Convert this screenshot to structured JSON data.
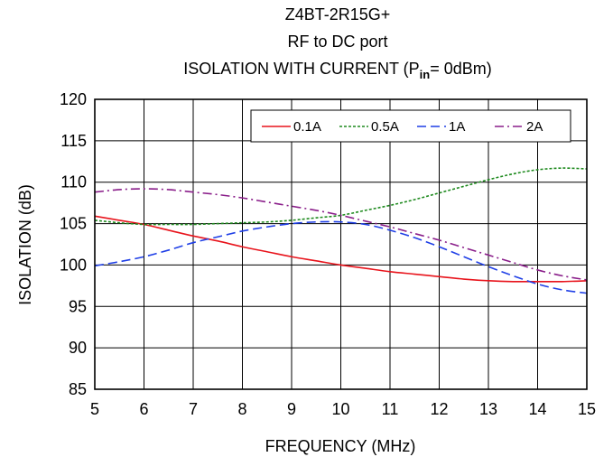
{
  "chart_data": {
    "type": "line",
    "title_lines": [
      "Z4BT-2R15G+",
      "RF to DC port"
    ],
    "title_line3": {
      "prefix": "ISOLATION WITH CURRENT (P",
      "subscript": "in",
      "suffix": "= 0dBm)"
    },
    "xlabel": "FREQUENCY (MHz)",
    "ylabel": "ISOLATION (dB)",
    "xlim": [
      5,
      15
    ],
    "ylim": [
      85,
      120
    ],
    "x_ticks": [
      5,
      6,
      7,
      8,
      9,
      10,
      11,
      12,
      13,
      14,
      15
    ],
    "y_ticks": [
      85,
      90,
      95,
      100,
      105,
      110,
      115,
      120
    ],
    "grid": true,
    "legend_position": "top-right",
    "series": [
      {
        "name": "0.1A",
        "color": "#e8141c",
        "dash": "solid",
        "x": [
          5,
          5.5,
          6,
          6.5,
          7,
          7.5,
          8,
          8.5,
          9,
          9.5,
          10,
          10.5,
          11,
          11.5,
          12,
          12.5,
          13,
          13.5,
          14,
          14.5,
          15
        ],
        "y": [
          105.9,
          105.4,
          104.9,
          104.2,
          103.5,
          102.9,
          102.2,
          101.6,
          101.0,
          100.5,
          100.0,
          99.6,
          99.2,
          98.9,
          98.6,
          98.3,
          98.1,
          98.0,
          98.0,
          98.0,
          98.1
        ]
      },
      {
        "name": "0.5A",
        "color": "#1e8a1e",
        "dash": "short",
        "x": [
          5,
          5.5,
          6,
          6.5,
          7,
          7.5,
          8,
          8.5,
          9,
          9.5,
          10,
          10.5,
          11,
          11.5,
          12,
          12.5,
          13,
          13.5,
          14,
          14.5,
          15
        ],
        "y": [
          105.4,
          105.1,
          104.9,
          104.9,
          104.9,
          105.0,
          105.1,
          105.2,
          105.4,
          105.7,
          106.0,
          106.6,
          107.2,
          107.9,
          108.7,
          109.5,
          110.3,
          111.0,
          111.5,
          111.7,
          111.6
        ]
      },
      {
        "name": "1A",
        "color": "#1f3fe6",
        "dash": "long",
        "x": [
          5,
          5.5,
          6,
          6.5,
          7,
          7.5,
          8,
          8.5,
          9,
          9.5,
          10,
          10.5,
          11,
          11.5,
          12,
          12.5,
          13,
          13.5,
          14,
          14.5,
          15
        ],
        "y": [
          99.9,
          100.4,
          101.0,
          101.8,
          102.7,
          103.4,
          104.1,
          104.6,
          105.0,
          105.2,
          105.2,
          104.9,
          104.2,
          103.3,
          102.2,
          101.0,
          99.8,
          98.7,
          97.7,
          97.0,
          96.6
        ]
      },
      {
        "name": "2A",
        "color": "#8a1e8a",
        "dash": "dashdot",
        "x": [
          5,
          5.5,
          6,
          6.5,
          7,
          7.5,
          8,
          8.5,
          9,
          9.5,
          10,
          10.5,
          11,
          11.5,
          12,
          12.5,
          13,
          13.5,
          14,
          14.5,
          15
        ],
        "y": [
          108.8,
          109.1,
          109.2,
          109.1,
          108.8,
          108.5,
          108.1,
          107.6,
          107.1,
          106.6,
          106.0,
          105.3,
          104.6,
          103.8,
          103.0,
          102.1,
          101.2,
          100.3,
          99.4,
          98.7,
          98.2
        ]
      }
    ]
  }
}
